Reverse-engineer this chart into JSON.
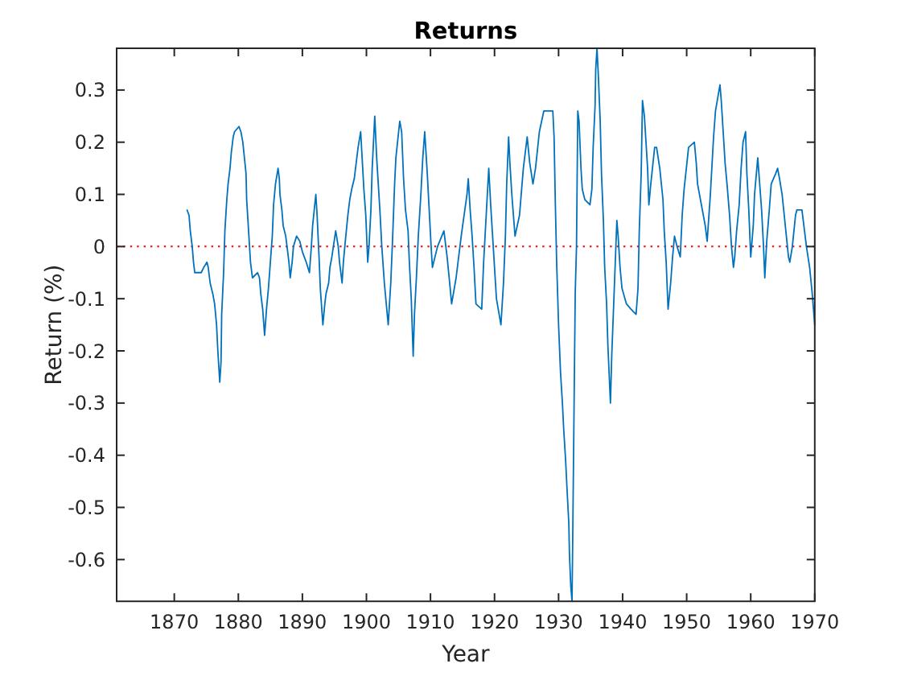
{
  "chart_data": {
    "type": "line",
    "title": "Returns",
    "xlabel": "Year",
    "ylabel": "Return (%)",
    "x": [
      1872.0,
      1872.3,
      1872.5,
      1872.8,
      1873.0,
      1873.2,
      1874.2,
      1874.6,
      1875.1,
      1875.3,
      1875.6,
      1876.0,
      1876.3,
      1876.6,
      1876.8,
      1877.1,
      1877.3,
      1877.4,
      1877.7,
      1877.9,
      1878.2,
      1878.4,
      1878.7,
      1878.9,
      1879.2,
      1879.4,
      1880.1,
      1880.4,
      1880.7,
      1881.2,
      1881.3,
      1881.6,
      1881.9,
      1882.2,
      1883.0,
      1883.3,
      1883.5,
      1883.8,
      1884.1,
      1884.4,
      1884.7,
      1885.0,
      1885.3,
      1885.5,
      1885.8,
      1886.2,
      1886.4,
      1886.5,
      1886.8,
      1887.0,
      1887.4,
      1887.7,
      1887.9,
      1888.1,
      1888.4,
      1888.6,
      1889.1,
      1889.6,
      1890.0,
      1890.3,
      1890.6,
      1891.1,
      1891.4,
      1891.6,
      1892.1,
      1892.3,
      1892.6,
      1892.8,
      1893.2,
      1893.5,
      1893.7,
      1894.1,
      1894.3,
      1894.6,
      1895.2,
      1895.6,
      1895.8,
      1896.2,
      1896.4,
      1896.7,
      1897.1,
      1897.4,
      1897.7,
      1898.1,
      1898.4,
      1898.7,
      1899.1,
      1899.6,
      1899.9,
      1900.2,
      1900.4,
      1900.7,
      1900.9,
      1901.3,
      1901.6,
      1901.9,
      1902.1,
      1902.4,
      1902.8,
      1903.4,
      1903.8,
      1904.1,
      1904.4,
      1904.6,
      1905.2,
      1905.5,
      1905.8,
      1906.1,
      1906.5,
      1906.7,
      1907.0,
      1907.3,
      1907.5,
      1907.8,
      1908.1,
      1908.5,
      1908.8,
      1909.1,
      1909.5,
      1909.8,
      1910.1,
      1910.3,
      1911.1,
      1912.1,
      1912.3,
      1912.6,
      1913.0,
      1913.3,
      1914.0,
      1914.8,
      1915.7,
      1915.9,
      1916.2,
      1916.5,
      1916.8,
      1917.1,
      1918.0,
      1918.3,
      1918.7,
      1919.1,
      1919.4,
      1919.8,
      1920.1,
      1920.3,
      1921.0,
      1921.4,
      1921.7,
      1921.9,
      1922.2,
      1922.4,
      1922.7,
      1923.2,
      1923.9,
      1924.5,
      1925.1,
      1925.5,
      1926.0,
      1926.4,
      1927.0,
      1927.7,
      1928.1,
      1929.1,
      1929.3,
      1929.5,
      1929.7,
      1930.0,
      1930.3,
      1930.6,
      1930.8,
      1931.1,
      1931.3,
      1931.6,
      1931.7,
      1931.9,
      1932.1,
      1932.2,
      1932.4,
      1932.6,
      1932.8,
      1933.0,
      1933.2,
      1933.5,
      1933.7,
      1934.1,
      1934.9,
      1935.2,
      1935.4,
      1935.7,
      1935.8,
      1936.0,
      1936.2,
      1936.5,
      1936.7,
      1937.0,
      1937.2,
      1937.5,
      1937.7,
      1938.1,
      1938.3,
      1938.7,
      1939.1,
      1939.3,
      1939.6,
      1939.9,
      1940.6,
      1941.3,
      1942.1,
      1942.4,
      1942.6,
      1942.9,
      1943.1,
      1943.4,
      1943.6,
      1943.9,
      1944.1,
      1944.4,
      1945.0,
      1945.3,
      1945.8,
      1946.3,
      1946.5,
      1946.8,
      1947.1,
      1947.5,
      1947.8,
      1948.1,
      1948.5,
      1949.0,
      1949.3,
      1949.6,
      1950.3,
      1951.2,
      1951.5,
      1951.7,
      1952.3,
      1952.9,
      1953.2,
      1953.7,
      1954.2,
      1954.5,
      1955.2,
      1955.4,
      1955.7,
      1956.0,
      1956.3,
      1956.7,
      1957.0,
      1957.3,
      1957.5,
      1957.8,
      1958.2,
      1958.5,
      1958.8,
      1959.2,
      1959.4,
      1959.7,
      1960.0,
      1960.4,
      1960.6,
      1961.1,
      1961.4,
      1961.7,
      1962.0,
      1962.2,
      1962.5,
      1962.9,
      1963.2,
      1963.9,
      1964.2,
      1964.5,
      1964.9,
      1965.4,
      1965.9,
      1966.1,
      1966.5,
      1967.0,
      1967.2,
      1968.0,
      1968.2,
      1968.7,
      1969.2,
      1969.6,
      1970.0
    ],
    "series": [
      {
        "color": "#0072bd",
        "values": [
          0.07,
          0.06,
          0.03,
          0.0,
          -0.03,
          -0.05,
          -0.05,
          -0.04,
          -0.03,
          -0.04,
          -0.07,
          -0.09,
          -0.11,
          -0.15,
          -0.2,
          -0.26,
          -0.22,
          -0.13,
          -0.05,
          0.03,
          0.09,
          0.12,
          0.15,
          0.18,
          0.21,
          0.22,
          0.23,
          0.22,
          0.2,
          0.14,
          0.09,
          0.03,
          -0.03,
          -0.06,
          -0.05,
          -0.06,
          -0.09,
          -0.12,
          -0.17,
          -0.12,
          -0.08,
          -0.03,
          0.02,
          0.08,
          0.12,
          0.15,
          0.13,
          0.1,
          0.07,
          0.04,
          0.02,
          -0.01,
          -0.03,
          -0.06,
          -0.03,
          0.0,
          0.02,
          0.01,
          -0.01,
          -0.02,
          -0.03,
          -0.05,
          0.0,
          0.04,
          0.1,
          0.06,
          -0.02,
          -0.08,
          -0.15,
          -0.11,
          -0.09,
          -0.07,
          -0.04,
          -0.02,
          0.03,
          0.0,
          -0.03,
          -0.07,
          -0.03,
          0.01,
          0.06,
          0.09,
          0.11,
          0.13,
          0.16,
          0.19,
          0.22,
          0.11,
          0.06,
          -0.03,
          0.0,
          0.07,
          0.15,
          0.25,
          0.17,
          0.11,
          0.07,
          0.0,
          -0.07,
          -0.15,
          -0.07,
          0.02,
          0.12,
          0.17,
          0.24,
          0.22,
          0.13,
          0.07,
          0.03,
          -0.03,
          -0.1,
          -0.21,
          -0.13,
          -0.06,
          0.02,
          0.1,
          0.17,
          0.22,
          0.14,
          0.07,
          0.0,
          -0.04,
          0.0,
          0.03,
          0.01,
          -0.02,
          -0.07,
          -0.11,
          -0.06,
          0.02,
          0.1,
          0.13,
          0.07,
          0.02,
          -0.04,
          -0.11,
          -0.12,
          -0.03,
          0.06,
          0.15,
          0.08,
          0.0,
          -0.06,
          -0.1,
          -0.15,
          -0.07,
          0.02,
          0.12,
          0.21,
          0.16,
          0.1,
          0.02,
          0.06,
          0.15,
          0.21,
          0.16,
          0.12,
          0.15,
          0.22,
          0.26,
          0.26,
          0.26,
          0.21,
          0.08,
          -0.03,
          -0.15,
          -0.24,
          -0.3,
          -0.35,
          -0.41,
          -0.46,
          -0.53,
          -0.59,
          -0.65,
          -0.68,
          -0.57,
          -0.33,
          -0.09,
          0.0,
          0.26,
          0.24,
          0.15,
          0.11,
          0.09,
          0.08,
          0.11,
          0.19,
          0.27,
          0.34,
          0.38,
          0.33,
          0.24,
          0.14,
          0.05,
          -0.04,
          -0.11,
          -0.19,
          -0.3,
          -0.21,
          -0.08,
          0.05,
          0.02,
          -0.04,
          -0.08,
          -0.11,
          -0.12,
          -0.13,
          -0.08,
          0.03,
          0.14,
          0.28,
          0.25,
          0.21,
          0.15,
          0.08,
          0.12,
          0.19,
          0.19,
          0.15,
          0.09,
          0.03,
          -0.03,
          -0.12,
          -0.07,
          -0.02,
          0.02,
          0.0,
          -0.02,
          0.06,
          0.11,
          0.19,
          0.2,
          0.16,
          0.12,
          0.08,
          0.04,
          0.01,
          0.1,
          0.21,
          0.26,
          0.31,
          0.28,
          0.22,
          0.16,
          0.12,
          0.06,
          0.0,
          -0.04,
          -0.02,
          0.03,
          0.08,
          0.15,
          0.2,
          0.22,
          0.14,
          0.07,
          -0.02,
          0.04,
          0.1,
          0.17,
          0.12,
          0.07,
          0.0,
          -0.06,
          0.01,
          0.07,
          0.12,
          0.14,
          0.15,
          0.13,
          0.1,
          0.04,
          -0.02,
          -0.03,
          0.0,
          0.06,
          0.07,
          0.07,
          0.05,
          0.0,
          -0.04,
          -0.09,
          -0.15
        ]
      }
    ],
    "xlim": [
      1861,
      1970
    ],
    "ylim": [
      -0.68,
      0.38
    ],
    "xticks": [
      1870,
      1880,
      1890,
      1900,
      1910,
      1920,
      1930,
      1940,
      1950,
      1960,
      1970
    ],
    "yticks": [
      -0.6,
      -0.5,
      -0.4,
      -0.3,
      -0.2,
      -0.1,
      0,
      0.1,
      0.2,
      0.3
    ],
    "ref_lines": [
      {
        "axis": "y",
        "value": 0,
        "color": "#ff0000",
        "line_style": "dotted"
      }
    ]
  }
}
